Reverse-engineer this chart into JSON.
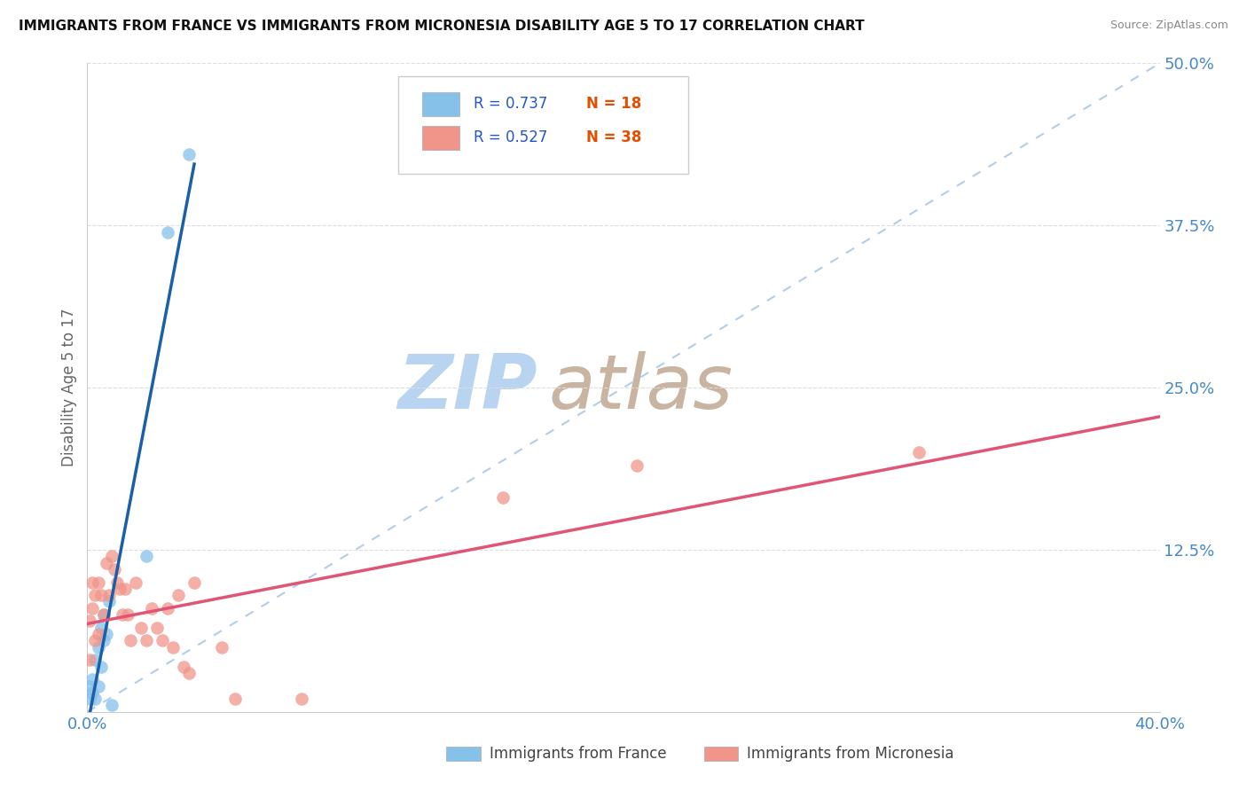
{
  "title": "IMMIGRANTS FROM FRANCE VS IMMIGRANTS FROM MICRONESIA DISABILITY AGE 5 TO 17 CORRELATION CHART",
  "source": "Source: ZipAtlas.com",
  "ylabel": "Disability Age 5 to 17",
  "xlim": [
    0.0,
    0.4
  ],
  "ylim": [
    0.0,
    0.5
  ],
  "xticks": [
    0.0,
    0.1,
    0.2,
    0.3,
    0.4
  ],
  "yticks": [
    0.0,
    0.125,
    0.25,
    0.375,
    0.5
  ],
  "color_france": "#85c1e9",
  "color_micronesia": "#f1948a",
  "color_france_line": "#1a5fa8",
  "color_micronesia_line": "#e05575",
  "color_diag": "#aac8e8",
  "watermark_zip": "ZIP",
  "watermark_atlas": "atlas",
  "watermark_color_zip": "#b8d4f0",
  "watermark_color_atlas": "#c8b4a0",
  "france_x": [
    0.001,
    0.001,
    0.002,
    0.002,
    0.003,
    0.003,
    0.004,
    0.004,
    0.005,
    0.005,
    0.006,
    0.006,
    0.007,
    0.008,
    0.009,
    0.022,
    0.03,
    0.038
  ],
  "france_y": [
    0.01,
    0.02,
    0.015,
    0.025,
    0.01,
    0.04,
    0.02,
    0.05,
    0.035,
    0.065,
    0.055,
    0.075,
    0.06,
    0.085,
    0.005,
    0.12,
    0.37,
    0.43
  ],
  "micronesia_x": [
    0.001,
    0.001,
    0.002,
    0.002,
    0.003,
    0.003,
    0.004,
    0.004,
    0.005,
    0.006,
    0.007,
    0.008,
    0.009,
    0.01,
    0.011,
    0.012,
    0.013,
    0.014,
    0.015,
    0.016,
    0.018,
    0.02,
    0.022,
    0.024,
    0.026,
    0.028,
    0.03,
    0.032,
    0.034,
    0.036,
    0.038,
    0.04,
    0.05,
    0.055,
    0.08,
    0.155,
    0.205,
    0.31
  ],
  "micronesia_y": [
    0.04,
    0.07,
    0.08,
    0.1,
    0.055,
    0.09,
    0.06,
    0.1,
    0.09,
    0.075,
    0.115,
    0.09,
    0.12,
    0.11,
    0.1,
    0.095,
    0.075,
    0.095,
    0.075,
    0.055,
    0.1,
    0.065,
    0.055,
    0.08,
    0.065,
    0.055,
    0.08,
    0.05,
    0.09,
    0.035,
    0.03,
    0.1,
    0.05,
    0.01,
    0.01,
    0.165,
    0.19,
    0.2
  ]
}
